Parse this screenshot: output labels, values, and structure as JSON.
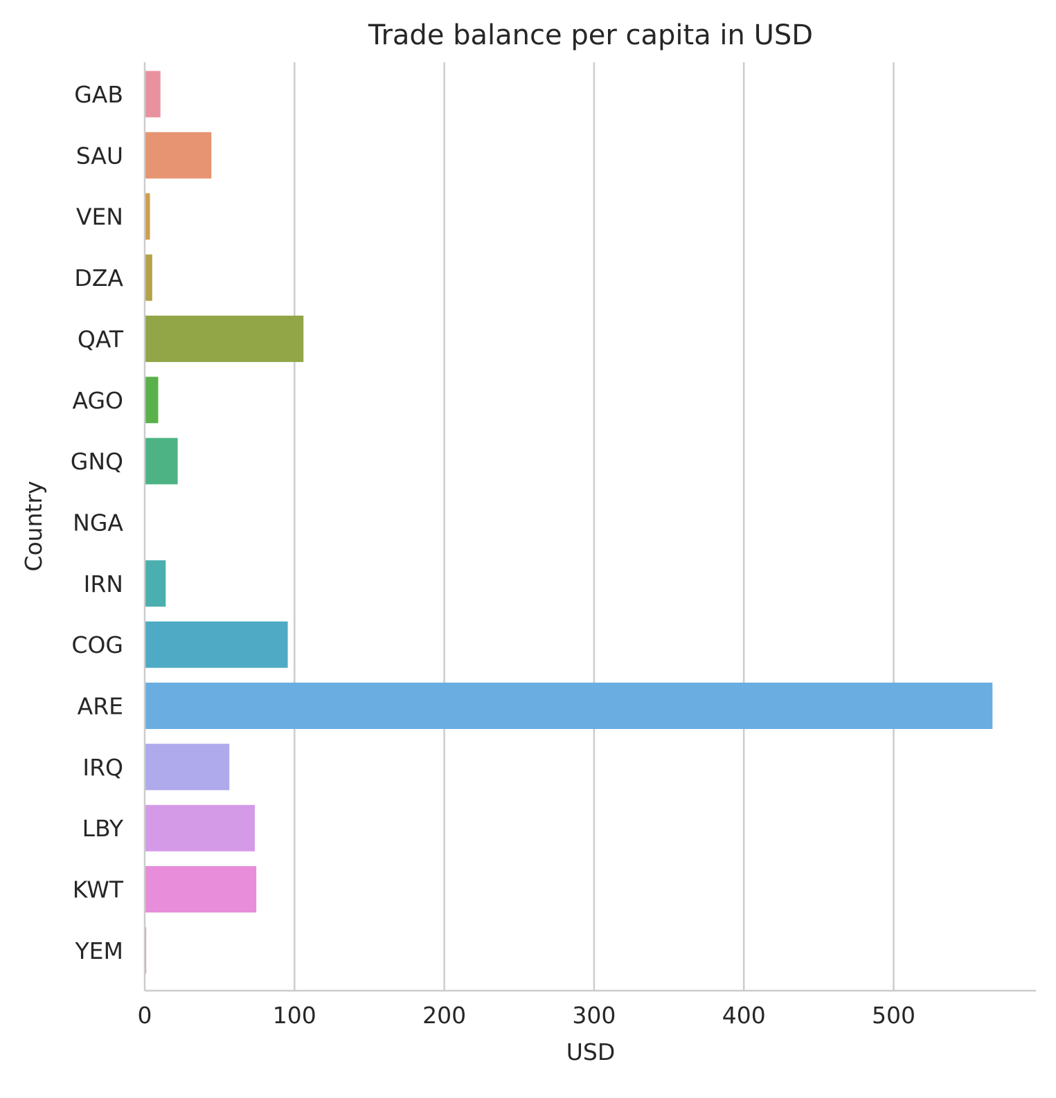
{
  "chart_data": {
    "type": "bar",
    "orientation": "horizontal",
    "title": "Trade balance per capita in USD",
    "xlabel": "USD",
    "ylabel": "Country",
    "xlim": [
      0,
      595
    ],
    "xticks": [
      0,
      100,
      200,
      300,
      400,
      500
    ],
    "grid": "x",
    "categories": [
      "GAB",
      "SAU",
      "VEN",
      "DZA",
      "QAT",
      "AGO",
      "GNQ",
      "NGA",
      "IRN",
      "COG",
      "ARE",
      "IRQ",
      "LBY",
      "KWT",
      "YEM"
    ],
    "values": [
      10.5,
      44.5,
      3.5,
      5,
      106,
      9,
      22,
      0,
      14,
      95.5,
      566,
      56.5,
      73.5,
      74.5,
      1
    ],
    "colors": [
      "#e8919f",
      "#e79472",
      "#ce9d50",
      "#b3a24a",
      "#92a647",
      "#5ab14b",
      "#4db384",
      "#48b29f",
      "#4baeaf",
      "#4fabc5",
      "#6aaee1",
      "#aeaaeb",
      "#d49ae8",
      "#e78dd9",
      "#e68fb4"
    ]
  }
}
